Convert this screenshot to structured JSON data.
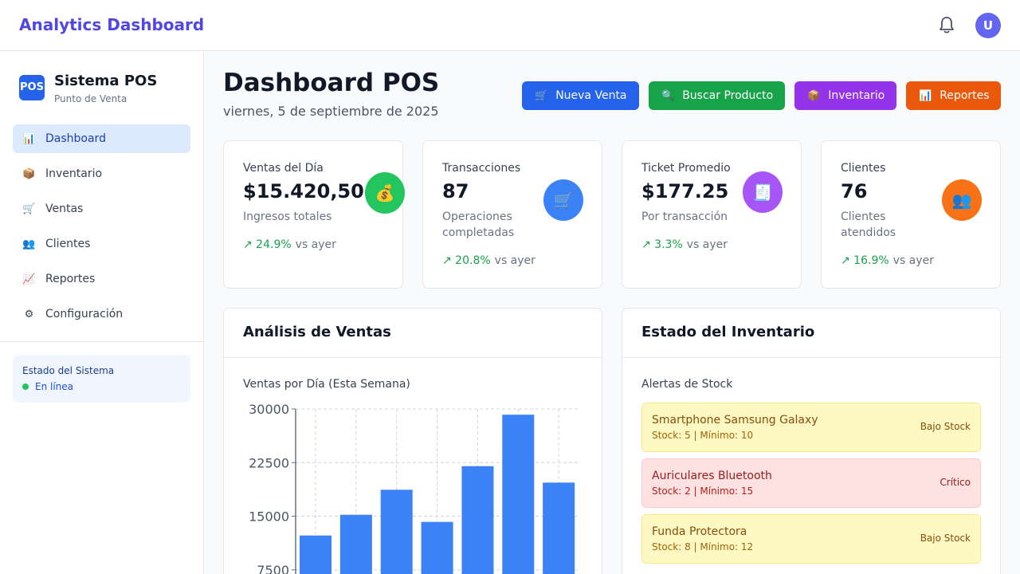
{
  "header": {
    "brand": "Analytics Dashboard",
    "avatar_initial": "U",
    "bell_icon": "bell-icon"
  },
  "sidebar": {
    "logo_text": "POS",
    "app_name": "Sistema POS",
    "app_subtitle": "Punto de Venta",
    "items": [
      {
        "icon": "📊",
        "label": "Dashboard",
        "active": true
      },
      {
        "icon": "📦",
        "label": "Inventario"
      },
      {
        "icon": "🛒",
        "label": "Ventas"
      },
      {
        "icon": "👥",
        "label": "Clientes"
      },
      {
        "icon": "📈",
        "label": "Reportes"
      },
      {
        "icon": "⚙",
        "label": "Configuración"
      }
    ],
    "status": {
      "title": "Estado del Sistema",
      "text": "En línea"
    }
  },
  "page": {
    "title": "Dashboard POS",
    "date": "viernes, 5 de septiembre de 2025"
  },
  "actions": [
    {
      "icon": "🛒",
      "label": "Nueva Venta",
      "color": "#2563eb"
    },
    {
      "icon": "🔍",
      "label": "Buscar Producto",
      "color": "#16a34a"
    },
    {
      "icon": "📦",
      "label": "Inventario",
      "color": "#9333ea"
    },
    {
      "icon": "📊",
      "label": "Reportes",
      "color": "#ea580c"
    }
  ],
  "stats": [
    {
      "label": "Ventas del Día",
      "value": "$15.420,50",
      "sub": "Ingresos totales",
      "trend": "↗ 24.9%",
      "vs": "vs ayer",
      "icon": "💰",
      "icon_color": "#22c55e"
    },
    {
      "label": "Transacciones",
      "value": "87",
      "sub": "Operaciones completadas",
      "trend": "↗ 20.8%",
      "vs": "vs ayer",
      "icon": "🛒",
      "icon_color": "#3b82f6"
    },
    {
      "label": "Ticket Promedio",
      "value": "$177.25",
      "sub": "Por transacción",
      "trend": "↗ 3.3%",
      "vs": "vs ayer",
      "icon": "🧾",
      "icon_color": "#a855f7"
    },
    {
      "label": "Clientes",
      "value": "76",
      "sub": "Clientes atendidos",
      "trend": "↗ 16.9%",
      "vs": "vs ayer",
      "icon": "👥",
      "icon_color": "#f97316"
    }
  ],
  "sales_panel": {
    "title": "Análisis de Ventas",
    "chart_title": "Ventas por Día (Esta Semana)"
  },
  "chart_data": {
    "type": "bar",
    "title": "Ventas por Día (Esta Semana)",
    "values": [
      12300,
      15200,
      18700,
      14200,
      22000,
      29200,
      19700
    ],
    "ylim": [
      0,
      30000
    ],
    "yticks": [
      7500,
      15000,
      22500,
      30000
    ],
    "grid": true,
    "color": "#3b82f6"
  },
  "inventory_panel": {
    "title": "Estado del Inventario",
    "subtitle": "Alertas de Stock",
    "alerts": [
      {
        "name": "Smartphone Samsung Galaxy",
        "stock": "Stock: 5 | Mínimo: 10",
        "badge": "Bajo Stock",
        "level": "warn"
      },
      {
        "name": "Auriculares Bluetooth",
        "stock": "Stock: 2 | Mínimo: 15",
        "badge": "Crítico",
        "level": "crit"
      },
      {
        "name": "Funda Protectora",
        "stock": "Stock: 8 | Mínimo: 12",
        "badge": "Bajo Stock",
        "level": "warn"
      }
    ]
  }
}
